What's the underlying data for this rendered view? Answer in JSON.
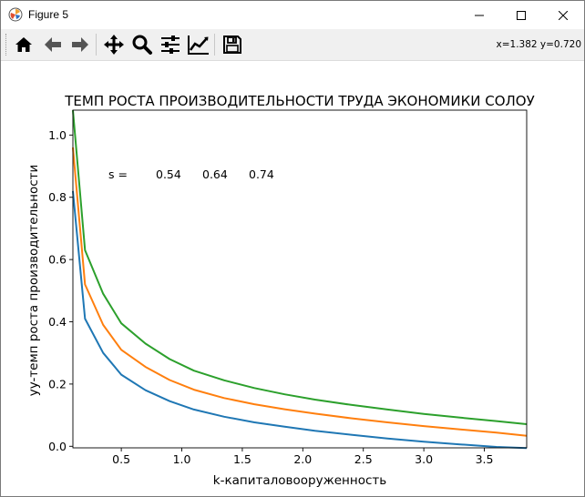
{
  "window": {
    "title": "Figure 5"
  },
  "toolbar": {
    "buttons": [
      {
        "name": "home-icon"
      },
      {
        "name": "back-icon"
      },
      {
        "name": "forward-icon"
      },
      {
        "name": "pan-icon"
      },
      {
        "name": "zoom-icon"
      },
      {
        "name": "subplots-icon"
      },
      {
        "name": "customize-icon"
      },
      {
        "name": "save-icon"
      }
    ],
    "coords": "x=1.382 y=0.720"
  },
  "chart_data": {
    "type": "line",
    "title": "ТЕМП РОСТА ПРОИЗВОДИТЕЛЬНОСТИ ТРУДА ЭКОНОМИКИ СОЛОУ",
    "xlabel": "k-капиталовооруженность",
    "ylabel": "yy-темп роста производительности",
    "xlim": [
      0.1,
      3.85
    ],
    "ylim": [
      -0.005,
      1.08
    ],
    "xticks": [
      0.5,
      1.0,
      1.5,
      2.0,
      2.5,
      3.0,
      3.5
    ],
    "xtick_labels": [
      "0.5",
      "1.0",
      "1.5",
      "2.0",
      "2.5",
      "3.0",
      "3.5"
    ],
    "yticks": [
      0.0,
      0.2,
      0.4,
      0.6,
      0.8,
      1.0
    ],
    "ytick_labels": [
      "0.0",
      "0.2",
      "0.4",
      "0.6",
      "0.8",
      "1.0"
    ],
    "annotation": {
      "prefix": "s =",
      "values": [
        "0.54",
        "0.64",
        "0.74"
      ]
    },
    "x": [
      0.1,
      0.2,
      0.35,
      0.5,
      0.7,
      0.9,
      1.1,
      1.35,
      1.6,
      1.85,
      2.1,
      2.4,
      2.7,
      3.0,
      3.3,
      3.6,
      3.85
    ],
    "series": [
      {
        "color": "#1f77b4",
        "values": [
          0.82,
          0.41,
          0.3,
          0.23,
          0.18,
          0.145,
          0.118,
          0.095,
          0.077,
          0.063,
          0.05,
          0.037,
          0.025,
          0.015,
          0.006,
          -0.002,
          -0.006
        ]
      },
      {
        "color": "#ff7f0e",
        "values": [
          0.96,
          0.52,
          0.39,
          0.31,
          0.255,
          0.213,
          0.182,
          0.155,
          0.135,
          0.119,
          0.105,
          0.09,
          0.077,
          0.065,
          0.054,
          0.044,
          0.034
        ]
      },
      {
        "color": "#2ca02c",
        "values": [
          1.08,
          0.63,
          0.49,
          0.395,
          0.33,
          0.28,
          0.243,
          0.212,
          0.187,
          0.167,
          0.15,
          0.133,
          0.118,
          0.104,
          0.092,
          0.081,
          0.071
        ]
      }
    ]
  }
}
